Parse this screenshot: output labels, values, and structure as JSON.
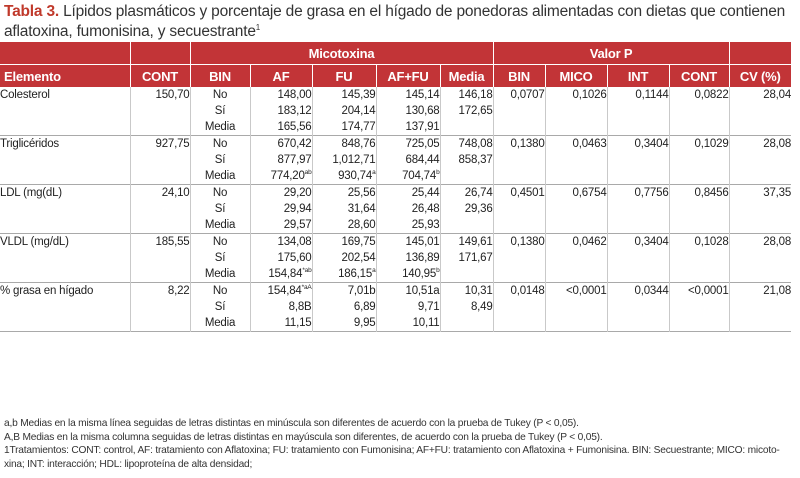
{
  "caption": {
    "label": "Tabla 3.",
    "text": " Lípidos plasmáticos y porcentaje de grasa en el hígado de ponedoras alimentadas con dietas que contienen aflatoxina, fumonisina, y secuestrante",
    "sup": "1"
  },
  "headers": {
    "micotoxina": "Micotoxina",
    "valor_p": "Valor P",
    "columns": [
      "Elemento",
      "CONT",
      "BIN",
      "AF",
      "FU",
      "AF+FU",
      "Media",
      "BIN",
      "MICO",
      "INT",
      "CONT",
      "CV (%)"
    ]
  },
  "rows": [
    {
      "elemento": "Colesterol",
      "cont": "150,70",
      "bin": [
        "No",
        "Sí",
        "Media"
      ],
      "af": [
        [
          "148,00",
          ""
        ],
        [
          "183,12",
          ""
        ],
        [
          "165,56",
          ""
        ]
      ],
      "fu": [
        [
          "145,39",
          ""
        ],
        [
          "204,14",
          ""
        ],
        [
          "174,77",
          ""
        ]
      ],
      "affu": [
        [
          "145,14",
          ""
        ],
        [
          "130,68",
          ""
        ],
        [
          "137,91",
          ""
        ]
      ],
      "media": [
        "146,18",
        "172,65"
      ],
      "p_bin": "0,0707",
      "p_mico": "0,1026",
      "p_int": "0,1144",
      "p_cont": "0,0822",
      "cv": "28,04"
    },
    {
      "elemento": "Triglicéridos",
      "cont": "927,75",
      "bin": [
        "No",
        "Sí",
        "Media"
      ],
      "af": [
        [
          "670,42",
          ""
        ],
        [
          "877,97",
          ""
        ],
        [
          "774,20",
          "ab"
        ]
      ],
      "fu": [
        [
          "848,76",
          ""
        ],
        [
          "1,012,71",
          ""
        ],
        [
          "930,74",
          "a"
        ]
      ],
      "affu": [
        [
          "725,05",
          ""
        ],
        [
          "684,44",
          ""
        ],
        [
          "704,74",
          "b"
        ]
      ],
      "media": [
        "748,08",
        "858,37"
      ],
      "p_bin": "0,1380",
      "p_mico": "0,0463",
      "p_int": "0,3404",
      "p_cont": "0,1029",
      "cv": "28,08"
    },
    {
      "elemento": "LDL (mg(dL)",
      "cont": "24,10",
      "bin": [
        "No",
        "Sí",
        "Media"
      ],
      "af": [
        [
          "29,20",
          ""
        ],
        [
          "29,94",
          ""
        ],
        [
          "29,57",
          ""
        ]
      ],
      "fu": [
        [
          "25,56",
          ""
        ],
        [
          "31,64",
          ""
        ],
        [
          "28,60",
          ""
        ]
      ],
      "affu": [
        [
          "25,44",
          ""
        ],
        [
          "26,48",
          ""
        ],
        [
          "25,93",
          ""
        ]
      ],
      "media": [
        "26,74",
        "29,36"
      ],
      "p_bin": "0,4501",
      "p_mico": "0,6754",
      "p_int": "0,7756",
      "p_cont": "0,8456",
      "cv": "37,35"
    },
    {
      "elemento": "VLDL (mg/dL)",
      "cont": "185,55",
      "bin": [
        "No",
        "Sí",
        "Media"
      ],
      "af": [
        [
          "134,08",
          ""
        ],
        [
          "175,60",
          ""
        ],
        [
          "154,84",
          "*ab"
        ]
      ],
      "fu": [
        [
          "169,75",
          ""
        ],
        [
          "202,54",
          ""
        ],
        [
          "186,15",
          "a"
        ]
      ],
      "affu": [
        [
          "145,01",
          ""
        ],
        [
          "136,89",
          ""
        ],
        [
          "140,95",
          "b"
        ]
      ],
      "media": [
        "149,61",
        "171,67"
      ],
      "p_bin": "0,1380",
      "p_mico": "0,0462",
      "p_int": "0,3404",
      "p_cont": "0,1028",
      "cv": "28,08"
    },
    {
      "elemento": "% grasa en hígado",
      "cont": "8,22",
      "bin": [
        "No",
        "Sí",
        "Media"
      ],
      "af": [
        [
          "154,84",
          "*aA"
        ],
        [
          "8,8B",
          ""
        ],
        [
          "11,15",
          ""
        ]
      ],
      "fu": [
        [
          "7,01b",
          ""
        ],
        [
          "6,89",
          ""
        ],
        [
          "9,95",
          ""
        ]
      ],
      "affu": [
        [
          "10,51a",
          ""
        ],
        [
          "9,71",
          ""
        ],
        [
          "10,11",
          ""
        ]
      ],
      "media": [
        "10,31",
        "8,49"
      ],
      "p_bin": "0,0148",
      "p_mico": "<0,0001",
      "p_int": "0,0344",
      "p_cont": "<0,0001",
      "cv": "21,08"
    }
  ],
  "notes": [
    "a,b Medias en la misma línea seguidas de letras distintas en minúscula son diferentes de acuerdo con la prueba de Tukey (P < 0,05).",
    "A,B Medias en la misma columna seguidas de letras distintas en mayúscula son diferentes, de acuerdo con la prueba de Tukey (P < 0,05).",
    "1Tratamientos: CONT: control, AF: tratamiento con Aflatoxina; FU: tratamiento con Fumonisina; AF+FU: tratamiento con Aflatoxina + Fumonisina. BIN: Secuestrante; MICO: micoto-",
    "xina; INT: interacción; HDL: lipoproteína de alta densidad;"
  ],
  "colors": {
    "header_bg": "#c23437",
    "caption_label": "#c0392b",
    "rule": "#a9a9a9"
  }
}
